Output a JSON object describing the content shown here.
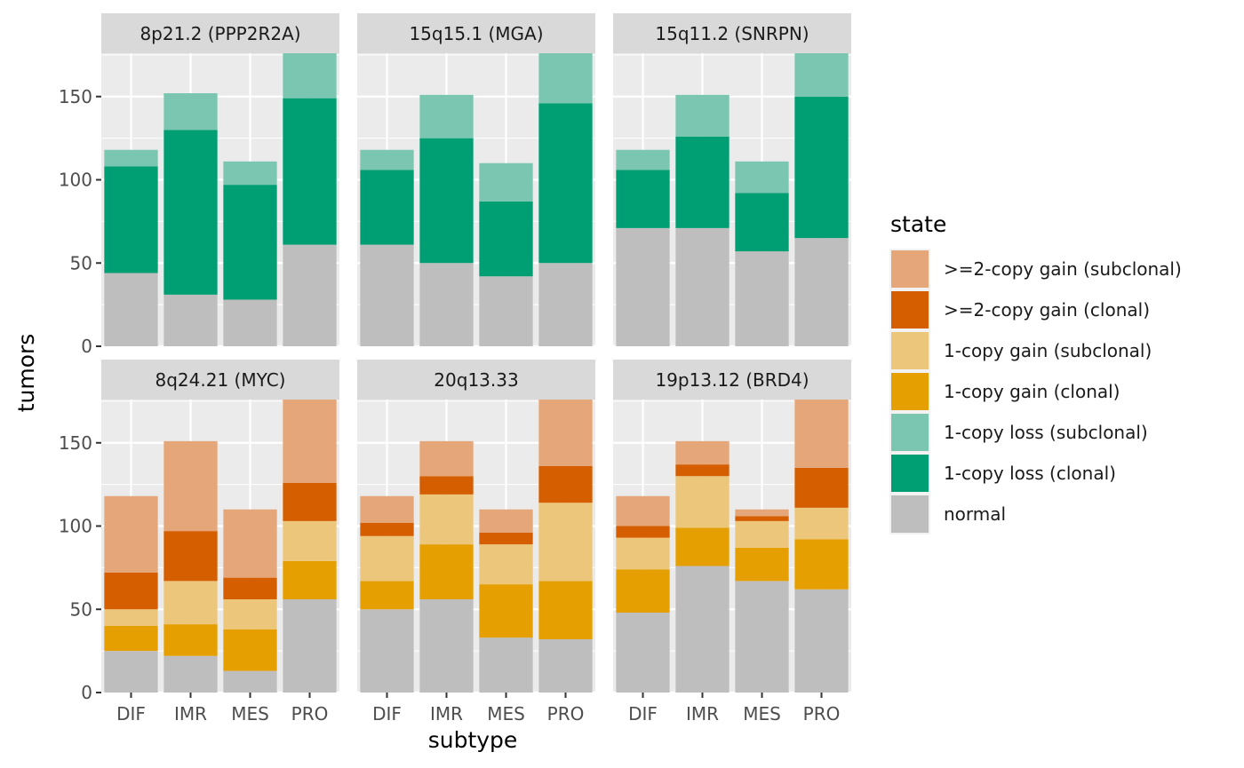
{
  "chart_data": {
    "type": "bar",
    "stacked": true,
    "categories": [
      "DIF",
      "IMR",
      "MES",
      "PRO"
    ],
    "xlabel": "subtype",
    "ylabel": "tumors",
    "ylim": [
      0,
      176
    ],
    "yticks": [
      0,
      50,
      100,
      150
    ],
    "grid": true,
    "legend": {
      "title": "state",
      "placement": "right",
      "entries": [
        {
          "label": ">=2-copy gain (subclonal)",
          "color": "#e5a679"
        },
        {
          "label": ">=2-copy gain (clonal)",
          "color": "#d55e00"
        },
        {
          "label": "1-copy gain (subclonal)",
          "color": "#ecc77b"
        },
        {
          "label": "1-copy gain (clonal)",
          "color": "#e69f00"
        },
        {
          "label": "1-copy loss (subclonal)",
          "color": "#7ac6b0"
        },
        {
          "label": "1-copy loss (clonal)",
          "color": "#009e73"
        },
        {
          "label": "normal",
          "color": "#bebebe"
        }
      ]
    },
    "series_order": [
      "normal",
      "1-copy loss (clonal)",
      "1-copy loss (subclonal)",
      "1-copy gain (clonal)",
      "1-copy gain (subclonal)",
      ">=2-copy gain (clonal)",
      ">=2-copy gain (subclonal)"
    ],
    "panels": [
      {
        "title": "8p21.2 (PPP2R2A)",
        "series": [
          {
            "name": "normal",
            "values": [
              44,
              31,
              28,
              61
            ]
          },
          {
            "name": "1-copy loss (clonal)",
            "values": [
              64,
              99,
              69,
              88
            ]
          },
          {
            "name": "1-copy loss (subclonal)",
            "values": [
              10,
              22,
              14,
              27
            ]
          }
        ]
      },
      {
        "title": "15q15.1 (MGA)",
        "series": [
          {
            "name": "normal",
            "values": [
              61,
              50,
              42,
              50
            ]
          },
          {
            "name": "1-copy loss (clonal)",
            "values": [
              45,
              75,
              45,
              96
            ]
          },
          {
            "name": "1-copy loss (subclonal)",
            "values": [
              12,
              26,
              23,
              30
            ]
          }
        ]
      },
      {
        "title": "15q11.2 (SNRPN)",
        "series": [
          {
            "name": "normal",
            "values": [
              71,
              71,
              57,
              65
            ]
          },
          {
            "name": "1-copy loss (clonal)",
            "values": [
              35,
              55,
              35,
              85
            ]
          },
          {
            "name": "1-copy loss (subclonal)",
            "values": [
              12,
              25,
              19,
              26
            ]
          }
        ]
      },
      {
        "title": "8q24.21 (MYC)",
        "series": [
          {
            "name": "normal",
            "values": [
              25,
              22,
              13,
              56
            ]
          },
          {
            "name": "1-copy gain (clonal)",
            "values": [
              15,
              19,
              25,
              23
            ]
          },
          {
            "name": "1-copy gain (subclonal)",
            "values": [
              10,
              26,
              18,
              24
            ]
          },
          {
            "name": ">=2-copy gain (clonal)",
            "values": [
              22,
              30,
              13,
              23
            ]
          },
          {
            "name": ">=2-copy gain (subclonal)",
            "values": [
              46,
              54,
              41,
              50
            ]
          }
        ]
      },
      {
        "title": "20q13.33",
        "series": [
          {
            "name": "normal",
            "values": [
              50,
              56,
              33,
              32
            ]
          },
          {
            "name": "1-copy gain (clonal)",
            "values": [
              17,
              33,
              32,
              35
            ]
          },
          {
            "name": "1-copy gain (subclonal)",
            "values": [
              27,
              30,
              24,
              47
            ]
          },
          {
            "name": ">=2-copy gain (clonal)",
            "values": [
              8,
              11,
              7,
              22
            ]
          },
          {
            "name": ">=2-copy gain (subclonal)",
            "values": [
              16,
              21,
              14,
              40
            ]
          }
        ]
      },
      {
        "title": "19p13.12 (BRD4)",
        "series": [
          {
            "name": "normal",
            "values": [
              48,
              76,
              67,
              62
            ]
          },
          {
            "name": "1-copy gain (clonal)",
            "values": [
              26,
              23,
              20,
              30
            ]
          },
          {
            "name": "1-copy gain (subclonal)",
            "values": [
              19,
              31,
              16,
              19
            ]
          },
          {
            "name": ">=2-copy gain (clonal)",
            "values": [
              7,
              7,
              3,
              24
            ]
          },
          {
            "name": ">=2-copy gain (subclonal)",
            "values": [
              18,
              14,
              4,
              41
            ]
          }
        ]
      }
    ]
  }
}
